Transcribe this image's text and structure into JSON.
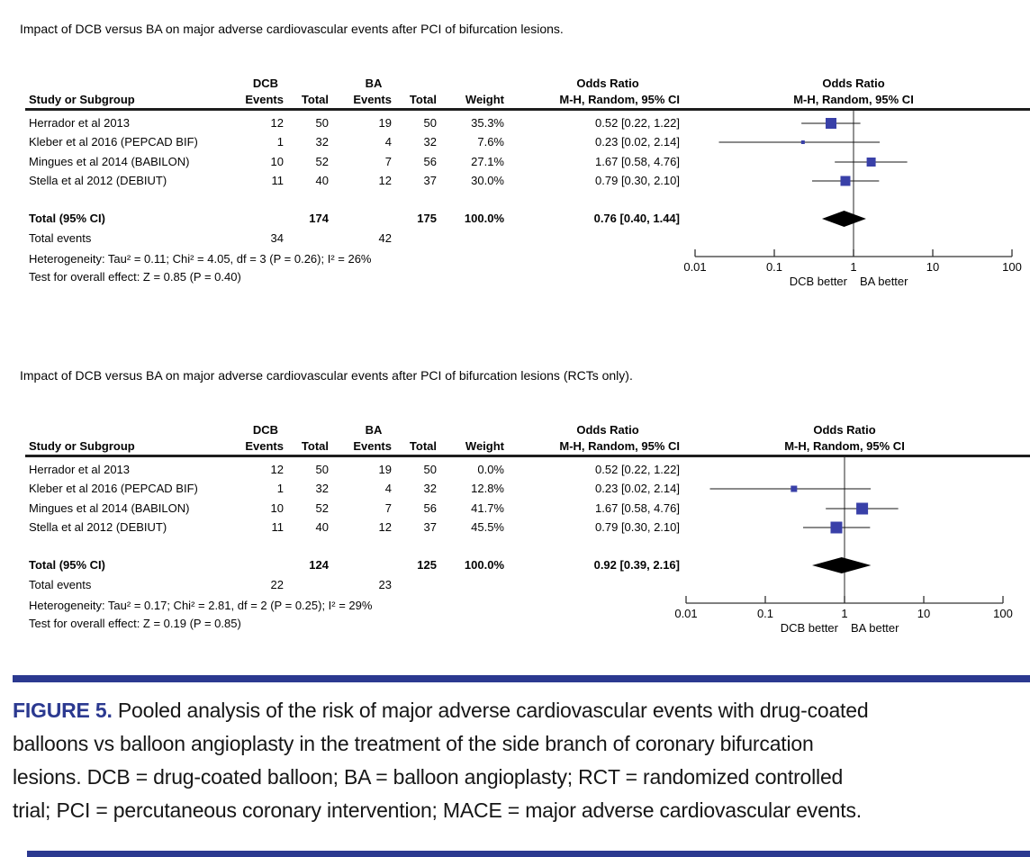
{
  "colors": {
    "accent": "#2b3990",
    "marker": "#3940a8",
    "diamond": "#000000"
  },
  "panels": [
    {
      "title": "Impact of DCB versus BA on major adverse cardiovascular events after PCI of bifurcation lesions.",
      "columns": {
        "study": "Study or Subgroup",
        "group1": "DCB",
        "group2": "BA",
        "events": "Events",
        "total": "Total",
        "weight": "Weight",
        "or_title": "Odds Ratio",
        "or_sub": "M-H, Random, 95% CI"
      },
      "plot": {
        "or_title": "Odds Ratio",
        "or_sub": "M-H, Random, 95% CI",
        "left_label": "DCB better",
        "right_label": "BA better",
        "ticks": [
          "0.01",
          "0.1",
          "1",
          "10",
          "100"
        ]
      },
      "total_label": "Total (95% CI)",
      "total_events_label": "Total events",
      "heterogeneity": "Heterogeneity: Tau² = 0.11; Chi² = 4.05, df = 3 (P = 0.26); I² = 26%",
      "overall_effect": "Test for overall effect: Z = 0.85 (P = 0.40)"
    },
    {
      "title": "Impact of DCB versus BA on major adverse cardiovascular events after PCI of bifurcation lesions (RCTs only).",
      "columns": {
        "study": "Study or Subgroup",
        "group1": "DCB",
        "group2": "BA",
        "events": "Events",
        "total": "Total",
        "weight": "Weight",
        "or_title": "Odds Ratio",
        "or_sub": "M-H, Random, 95% CI"
      },
      "plot": {
        "or_title": "Odds Ratio",
        "or_sub": "M-H, Random, 95% CI",
        "left_label": "DCB better",
        "right_label": "BA better",
        "ticks": [
          "0.01",
          "0.1",
          "1",
          "10",
          "100"
        ]
      },
      "total_label": "Total (95% CI)",
      "total_events_label": "Total events",
      "heterogeneity": "Heterogeneity: Tau² = 0.17; Chi² = 2.81, df = 2 (P = 0.25); I² = 29%",
      "overall_effect": "Test for overall effect: Z = 0.19 (P = 0.85)"
    }
  ],
  "chart_data": [
    {
      "type": "forest",
      "title": "Impact of DCB versus BA on major adverse cardiovascular events after PCI of bifurcation lesions.",
      "effect_measure": "Odds Ratio (M-H, Random, 95% CI)",
      "x_scale": "log",
      "x_ticks": [
        0.01,
        0.1,
        1,
        10,
        100
      ],
      "x_axis_labels": {
        "left": "DCB better",
        "right": "BA better"
      },
      "studies": [
        {
          "name": "Herrador et al 2013",
          "g1_events": 12,
          "g1_total": 50,
          "g2_events": 19,
          "g2_total": 50,
          "weight_pct": 35.3,
          "or": 0.52,
          "ci_low": 0.22,
          "ci_high": 1.22
        },
        {
          "name": "Kleber et al 2016 (PEPCAD BIF)",
          "g1_events": 1,
          "g1_total": 32,
          "g2_events": 4,
          "g2_total": 32,
          "weight_pct": 7.6,
          "or": 0.23,
          "ci_low": 0.02,
          "ci_high": 2.14
        },
        {
          "name": "Mingues et al 2014 (BABILON)",
          "g1_events": 10,
          "g1_total": 52,
          "g2_events": 7,
          "g2_total": 56,
          "weight_pct": 27.1,
          "or": 1.67,
          "ci_low": 0.58,
          "ci_high": 4.76
        },
        {
          "name": "Stella et al 2012 (DEBIUT)",
          "g1_events": 11,
          "g1_total": 40,
          "g2_events": 12,
          "g2_total": 37,
          "weight_pct": 30.0,
          "or": 0.79,
          "ci_low": 0.3,
          "ci_high": 2.1
        }
      ],
      "total": {
        "g1_total": 174,
        "g2_total": 175,
        "weight_pct": 100.0,
        "or": 0.76,
        "ci_low": 0.4,
        "ci_high": 1.44
      },
      "total_events": {
        "g1": 34,
        "g2": 42
      }
    },
    {
      "type": "forest",
      "title": "Impact of DCB versus BA on major adverse cardiovascular events after PCI of bifurcation lesions (RCTs only).",
      "effect_measure": "Odds Ratio (M-H, Random, 95% CI)",
      "x_scale": "log",
      "x_ticks": [
        0.01,
        0.1,
        1,
        10,
        100
      ],
      "x_axis_labels": {
        "left": "DCB better",
        "right": "BA better"
      },
      "studies": [
        {
          "name": "Herrador et al 2013",
          "g1_events": 12,
          "g1_total": 50,
          "g2_events": 19,
          "g2_total": 50,
          "weight_pct": 0.0,
          "or": 0.52,
          "ci_low": 0.22,
          "ci_high": 1.22
        },
        {
          "name": "Kleber et al 2016 (PEPCAD BIF)",
          "g1_events": 1,
          "g1_total": 32,
          "g2_events": 4,
          "g2_total": 32,
          "weight_pct": 12.8,
          "or": 0.23,
          "ci_low": 0.02,
          "ci_high": 2.14
        },
        {
          "name": "Mingues et al 2014 (BABILON)",
          "g1_events": 10,
          "g1_total": 52,
          "g2_events": 7,
          "g2_total": 56,
          "weight_pct": 41.7,
          "or": 1.67,
          "ci_low": 0.58,
          "ci_high": 4.76
        },
        {
          "name": "Stella et al 2012 (DEBIUT)",
          "g1_events": 11,
          "g1_total": 40,
          "g2_events": 12,
          "g2_total": 37,
          "weight_pct": 45.5,
          "or": 0.79,
          "ci_low": 0.3,
          "ci_high": 2.1
        }
      ],
      "total": {
        "g1_total": 124,
        "g2_total": 125,
        "weight_pct": 100.0,
        "or": 0.92,
        "ci_low": 0.39,
        "ci_high": 2.16
      },
      "total_events": {
        "g1": 22,
        "g2": 23
      }
    }
  ],
  "caption": {
    "label": "FIGURE 5.",
    "lines": [
      "Pooled analysis of the risk of major adverse cardiovascular events with drug-coated",
      "balloons vs balloon angioplasty in the treatment of the side branch of coronary bifurcation",
      "lesions. DCB = drug-coated balloon; BA = balloon angioplasty; RCT = randomized controlled",
      "trial; PCI = percutaneous coronary intervention; MACE = major adverse cardiovascular events."
    ]
  }
}
